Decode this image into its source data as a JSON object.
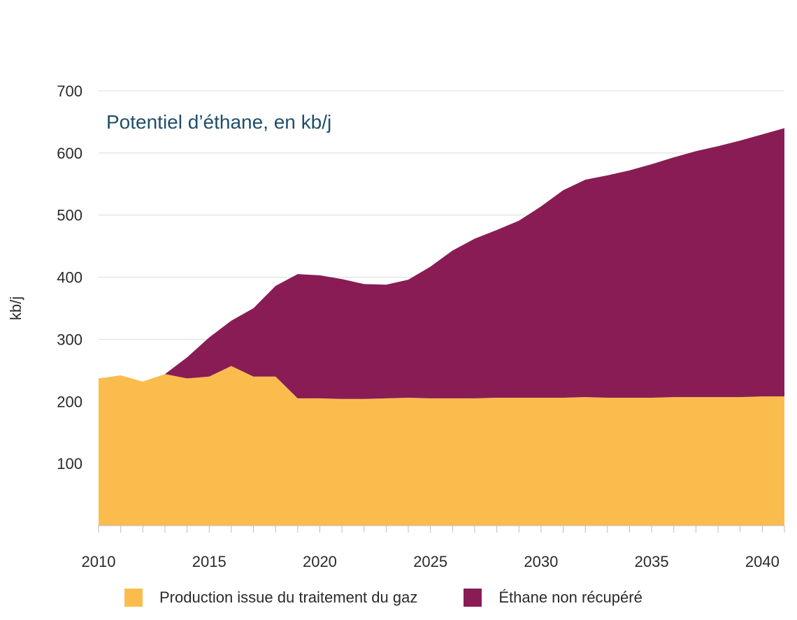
{
  "chart_data": {
    "type": "area",
    "stacked": true,
    "title": "Potentiel d’éthane, en kb/j",
    "xlabel": "",
    "ylabel": "kb/j",
    "xlim": [
      2010,
      2041
    ],
    "ylim": [
      0,
      700
    ],
    "x_ticks": [
      2010,
      2015,
      2020,
      2025,
      2030,
      2035,
      2040
    ],
    "y_ticks": [
      100,
      200,
      300,
      400,
      500,
      600,
      700
    ],
    "grid": "horizontal",
    "legend_position": "bottom",
    "x": [
      2010,
      2011,
      2012,
      2013,
      2014,
      2015,
      2016,
      2017,
      2018,
      2019,
      2020,
      2021,
      2022,
      2023,
      2024,
      2025,
      2026,
      2027,
      2028,
      2029,
      2030,
      2031,
      2032,
      2033,
      2034,
      2035,
      2036,
      2037,
      2038,
      2039,
      2040,
      2041
    ],
    "series": [
      {
        "name": "Production issue du traitement du gaz",
        "color": "#fbbc4e",
        "values": [
          237,
          242,
          232,
          244,
          237,
          240,
          257,
          240,
          240,
          205,
          205,
          204,
          204,
          205,
          206,
          205,
          205,
          205,
          206,
          206,
          206,
          206,
          207,
          206,
          206,
          206,
          207,
          207,
          207,
          207,
          208,
          208
        ]
      },
      {
        "name": "Éthane non récupéré",
        "color": "#891c55",
        "values": [
          0,
          0,
          0,
          0,
          34,
          63,
          73,
          110,
          146,
          200,
          198,
          193,
          185,
          183,
          190,
          212,
          238,
          257,
          270,
          285,
          308,
          334,
          350,
          358,
          366,
          376,
          386,
          396,
          404,
          413,
          422,
          432
        ]
      }
    ]
  }
}
